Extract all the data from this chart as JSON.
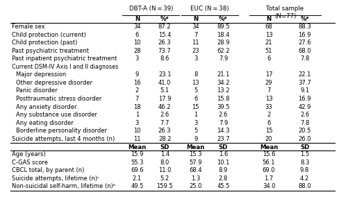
{
  "section1_rows": [
    [
      "Female sex",
      "34",
      "87.2",
      "34",
      "89.5",
      "68",
      "88.3"
    ],
    [
      "Child protection (current)",
      "6",
      "15.4",
      "7",
      "18.4",
      "13",
      "16.9"
    ],
    [
      "Child protection (past)",
      "10",
      "26.3",
      "11",
      "28.9",
      "21",
      "27.6"
    ],
    [
      "Past psychiatric treatment",
      "28",
      "73.7",
      "23",
      "62.2",
      "51",
      "68.0"
    ],
    [
      "Past inpatient psychiatric treatment",
      "3",
      "8.6",
      "3",
      "7.9",
      "6",
      "7.8"
    ],
    [
      "Current DSM-IV Axis I and II diagnoses",
      "",
      "",
      "",
      "",
      "",
      ""
    ],
    [
      "Major depression",
      "9",
      "23.1",
      "8",
      "21.1",
      "17",
      "22.1"
    ],
    [
      "Other depressive disorder",
      "16",
      "41.0",
      "13",
      "34.2",
      "29",
      "37.7"
    ],
    [
      "Panic disorder",
      "2",
      "5.1",
      "5",
      "13.2",
      "7",
      "9.1"
    ],
    [
      "Posttraumatic stress disorder",
      "7",
      "17.9",
      "6",
      "15.8",
      "13",
      "16.9"
    ],
    [
      "Any anxiety disorder",
      "18",
      "46.2",
      "15",
      "39.5",
      "33",
      "42.9"
    ],
    [
      "Any substance use disorder",
      "1",
      "2.6",
      "1",
      "2.6",
      "2",
      "2.6"
    ],
    [
      "Any eating disorder",
      "3",
      "7.7",
      "3",
      "7.9",
      "6",
      "7.8"
    ],
    [
      "Borderline personality disorder",
      "10",
      "26.3",
      "5",
      "14.3",
      "15",
      "20.5"
    ],
    [
      "Suicide attempts, last 4 months (n)",
      "11",
      "28.2",
      "9",
      "23.7",
      "20",
      "26.0"
    ]
  ],
  "section2_rows": [
    [
      "Age (years)",
      "15.9",
      "1.4",
      "15.3",
      "1.6",
      "15.6",
      "1.5"
    ],
    [
      "C-GAS score",
      "55.3",
      "8.0",
      "57.9",
      "10.1",
      "56.1",
      "8.3"
    ],
    [
      "CBCL total, by parent (n)",
      "69.6",
      "11.0",
      "68.4",
      "8.9",
      "69.0",
      "9.8"
    ],
    [
      "Suicide attempts, lifetime (n)ᶜ",
      "2.1",
      "5.2",
      "1.3",
      "2.8",
      "1.7",
      "4.2"
    ],
    [
      "Non-suicidal self-harm, lifetime (n)ᵇ",
      "49.5",
      "159.5",
      "25.0",
      "45.5",
      "34.0",
      "88.0"
    ]
  ],
  "group_labels": [
    "DBT-A (N = 39)",
    "EUC (N = 38)",
    "Total sample\n(N=77)"
  ],
  "col_subheaders_s1": [
    "N",
    "%ᵃ",
    "N",
    "%ᵃ",
    "N",
    "%ᵃ"
  ],
  "col_subheaders_s2": [
    "Mean",
    "SD",
    "Mean",
    "SD",
    "Mean",
    "SD"
  ],
  "bg_color": "#ffffff",
  "text_color": "#000000",
  "font_size": 6.0,
  "header_font_size": 6.2
}
